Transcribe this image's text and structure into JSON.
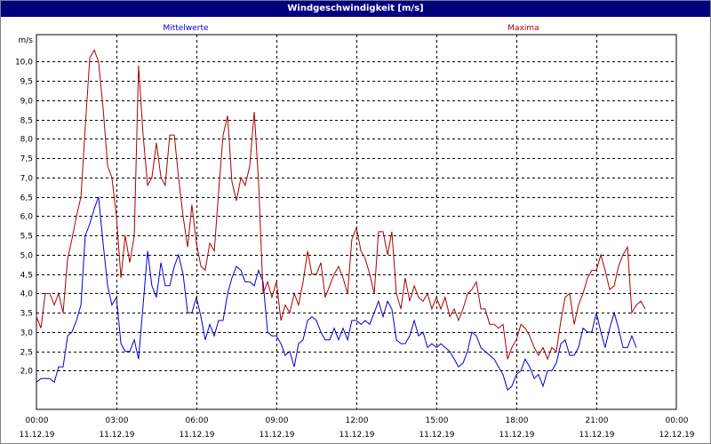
{
  "window": {
    "title": "Windgeschwindigkeit [m/s]"
  },
  "chart_data": {
    "type": "line",
    "title": "Windgeschwindigkeit [m/s]",
    "ylabel": "m/s",
    "ylim": [
      1.0,
      10.7
    ],
    "yticks": [
      "2,0",
      "2,5",
      "3,0",
      "3,5",
      "4,0",
      "4,5",
      "5,0",
      "5,5",
      "6,0",
      "6,5",
      "7,0",
      "7,5",
      "8,0",
      "8,5",
      "9,0",
      "9,5",
      "10,0"
    ],
    "xlim": [
      0,
      24
    ],
    "xticks": [
      {
        "time": "00:00",
        "date": "11.12.19"
      },
      {
        "time": "03:00",
        "date": "11.12.19"
      },
      {
        "time": "06:00",
        "date": "11.12.19"
      },
      {
        "time": "09:00",
        "date": "11.12.19"
      },
      {
        "time": "12:00",
        "date": "11.12.19"
      },
      {
        "time": "15:00",
        "date": "11.12.19"
      },
      {
        "time": "18:00",
        "date": "11.12.19"
      },
      {
        "time": "21:00",
        "date": "11.12.19"
      },
      {
        "time": "00:00",
        "date": "12.12.19"
      }
    ],
    "grid": true,
    "colors": {
      "mittelwerte": "#0000cc",
      "maxima": "#aa0000",
      "title_bar": "#00007f"
    },
    "series": [
      {
        "name": "Mittelwerte",
        "values": [
          [
            0,
            1.7
          ],
          [
            0.17,
            1.8
          ],
          [
            0.33,
            1.8
          ],
          [
            0.5,
            1.8
          ],
          [
            0.67,
            1.7
          ],
          [
            0.83,
            2.1
          ],
          [
            1,
            2.1
          ],
          [
            1.17,
            2.9
          ],
          [
            1.33,
            3.0
          ],
          [
            1.5,
            3.3
          ],
          [
            1.67,
            3.7
          ],
          [
            1.83,
            5.5
          ],
          [
            2,
            5.8
          ],
          [
            2.17,
            6.2
          ],
          [
            2.33,
            6.5
          ],
          [
            2.5,
            5.3
          ],
          [
            2.67,
            4.2
          ],
          [
            2.83,
            3.7
          ],
          [
            3,
            3.9
          ],
          [
            3.17,
            2.7
          ],
          [
            3.33,
            2.5
          ],
          [
            3.5,
            2.5
          ],
          [
            3.67,
            2.8
          ],
          [
            3.83,
            2.3
          ],
          [
            4,
            3.7
          ],
          [
            4.17,
            5.1
          ],
          [
            4.33,
            4.2
          ],
          [
            4.5,
            3.9
          ],
          [
            4.67,
            4.8
          ],
          [
            4.83,
            4.2
          ],
          [
            5,
            4.2
          ],
          [
            5.17,
            4.7
          ],
          [
            5.33,
            5.0
          ],
          [
            5.5,
            4.5
          ],
          [
            5.67,
            3.5
          ],
          [
            5.83,
            3.5
          ],
          [
            6,
            3.9
          ],
          [
            6.17,
            3.4
          ],
          [
            6.33,
            2.8
          ],
          [
            6.5,
            3.2
          ],
          [
            6.67,
            2.9
          ],
          [
            6.83,
            3.3
          ],
          [
            7,
            3.3
          ],
          [
            7.17,
            4.0
          ],
          [
            7.33,
            4.4
          ],
          [
            7.5,
            4.7
          ],
          [
            7.67,
            4.6
          ],
          [
            7.83,
            4.3
          ],
          [
            8,
            4.3
          ],
          [
            8.17,
            4.2
          ],
          [
            8.33,
            4.6
          ],
          [
            8.5,
            4.3
          ],
          [
            8.67,
            3.0
          ],
          [
            8.83,
            2.9
          ],
          [
            9,
            2.9
          ],
          [
            9.17,
            2.7
          ],
          [
            9.33,
            2.4
          ],
          [
            9.5,
            2.5
          ],
          [
            9.67,
            2.1
          ],
          [
            9.83,
            2.7
          ],
          [
            10,
            2.8
          ],
          [
            10.17,
            3.3
          ],
          [
            10.33,
            3.4
          ],
          [
            10.5,
            3.3
          ],
          [
            10.67,
            3.0
          ],
          [
            10.83,
            2.8
          ],
          [
            11,
            2.8
          ],
          [
            11.17,
            3.1
          ],
          [
            11.33,
            2.8
          ],
          [
            11.5,
            3.1
          ],
          [
            11.67,
            2.8
          ],
          [
            11.83,
            3.3
          ],
          [
            12,
            3.3
          ],
          [
            12.17,
            3.2
          ],
          [
            12.33,
            3.3
          ],
          [
            12.5,
            3.2
          ],
          [
            12.67,
            3.5
          ],
          [
            12.83,
            3.8
          ],
          [
            13,
            3.4
          ],
          [
            13.17,
            3.8
          ],
          [
            13.33,
            3.6
          ],
          [
            13.5,
            2.8
          ],
          [
            13.67,
            2.7
          ],
          [
            13.83,
            2.7
          ],
          [
            14,
            2.9
          ],
          [
            14.17,
            3.3
          ],
          [
            14.33,
            2.9
          ],
          [
            14.5,
            3.0
          ],
          [
            14.67,
            2.6
          ],
          [
            14.83,
            2.7
          ],
          [
            15,
            2.6
          ],
          [
            15.17,
            2.7
          ],
          [
            15.33,
            2.6
          ],
          [
            15.5,
            2.5
          ],
          [
            15.67,
            2.3
          ],
          [
            15.83,
            2.1
          ],
          [
            16,
            2.2
          ],
          [
            16.17,
            2.5
          ],
          [
            16.33,
            3.0
          ],
          [
            16.5,
            2.9
          ],
          [
            16.67,
            2.6
          ],
          [
            16.83,
            2.5
          ],
          [
            17,
            2.4
          ],
          [
            17.17,
            2.3
          ],
          [
            17.33,
            2.1
          ],
          [
            17.5,
            1.9
          ],
          [
            17.67,
            1.5
          ],
          [
            17.83,
            1.6
          ],
          [
            18,
            1.9
          ],
          [
            18.17,
            2.0
          ],
          [
            18.33,
            2.3
          ],
          [
            18.5,
            2.1
          ],
          [
            18.67,
            1.8
          ],
          [
            18.83,
            1.9
          ],
          [
            19,
            1.6
          ],
          [
            19.17,
            2.0
          ],
          [
            19.33,
            2.0
          ],
          [
            19.5,
            2.2
          ],
          [
            19.67,
            2.7
          ],
          [
            19.83,
            2.8
          ],
          [
            20,
            2.4
          ],
          [
            20.17,
            2.4
          ],
          [
            20.33,
            2.6
          ],
          [
            20.5,
            3.1
          ],
          [
            20.67,
            3.0
          ],
          [
            20.83,
            3.0
          ],
          [
            21,
            3.5
          ],
          [
            21.17,
            3.0
          ],
          [
            21.33,
            2.6
          ],
          [
            21.5,
            3.1
          ],
          [
            21.67,
            3.5
          ],
          [
            21.83,
            3.1
          ],
          [
            22,
            2.6
          ],
          [
            22.17,
            2.6
          ],
          [
            22.33,
            2.9
          ],
          [
            22.5,
            2.6
          ]
        ]
      },
      {
        "name": "Maxima",
        "values": [
          [
            0,
            3.4
          ],
          [
            0.17,
            3.1
          ],
          [
            0.33,
            4.0
          ],
          [
            0.5,
            4.0
          ],
          [
            0.67,
            3.7
          ],
          [
            0.83,
            4.0
          ],
          [
            1,
            3.5
          ],
          [
            1.17,
            4.9
          ],
          [
            1.33,
            5.4
          ],
          [
            1.5,
            6.0
          ],
          [
            1.67,
            6.5
          ],
          [
            1.83,
            8.3
          ],
          [
            2,
            10.1
          ],
          [
            2.17,
            10.3
          ],
          [
            2.33,
            10.0
          ],
          [
            2.5,
            8.8
          ],
          [
            2.67,
            7.3
          ],
          [
            2.83,
            7.0
          ],
          [
            3,
            6.0
          ],
          [
            3.17,
            4.4
          ],
          [
            3.33,
            5.5
          ],
          [
            3.5,
            4.8
          ],
          [
            3.67,
            5.5
          ],
          [
            3.83,
            9.9
          ],
          [
            4,
            8.1
          ],
          [
            4.17,
            6.8
          ],
          [
            4.33,
            7.0
          ],
          [
            4.5,
            7.9
          ],
          [
            4.67,
            7.0
          ],
          [
            4.83,
            6.8
          ],
          [
            5,
            8.1
          ],
          [
            5.17,
            8.1
          ],
          [
            5.33,
            7.0
          ],
          [
            5.5,
            6.0
          ],
          [
            5.67,
            5.2
          ],
          [
            5.83,
            6.3
          ],
          [
            6,
            5.3
          ],
          [
            6.17,
            4.7
          ],
          [
            6.33,
            4.6
          ],
          [
            6.5,
            5.3
          ],
          [
            6.67,
            5.1
          ],
          [
            6.83,
            6.6
          ],
          [
            7,
            8.1
          ],
          [
            7.17,
            8.6
          ],
          [
            7.33,
            6.9
          ],
          [
            7.5,
            6.4
          ],
          [
            7.67,
            7.0
          ],
          [
            7.83,
            6.8
          ],
          [
            8,
            7.3
          ],
          [
            8.17,
            8.7
          ],
          [
            8.33,
            6.9
          ],
          [
            8.5,
            4.0
          ],
          [
            8.67,
            4.3
          ],
          [
            8.83,
            3.9
          ],
          [
            9,
            4.3
          ],
          [
            9.17,
            3.3
          ],
          [
            9.33,
            3.7
          ],
          [
            9.5,
            3.5
          ],
          [
            9.67,
            4.0
          ],
          [
            9.83,
            3.7
          ],
          [
            10,
            4.3
          ],
          [
            10.17,
            5.1
          ],
          [
            10.33,
            4.5
          ],
          [
            10.5,
            4.5
          ],
          [
            10.67,
            4.8
          ],
          [
            10.83,
            3.9
          ],
          [
            11,
            4.2
          ],
          [
            11.17,
            4.5
          ],
          [
            11.33,
            4.7
          ],
          [
            11.5,
            4.4
          ],
          [
            11.67,
            4.0
          ],
          [
            11.83,
            5.4
          ],
          [
            12,
            5.7
          ],
          [
            12.17,
            5.1
          ],
          [
            12.33,
            4.9
          ],
          [
            12.5,
            4.5
          ],
          [
            12.67,
            4.0
          ],
          [
            12.83,
            5.6
          ],
          [
            13,
            5.6
          ],
          [
            13.17,
            5.0
          ],
          [
            13.33,
            5.6
          ],
          [
            13.5,
            4.0
          ],
          [
            13.67,
            3.6
          ],
          [
            13.83,
            4.4
          ],
          [
            14,
            3.8
          ],
          [
            14.17,
            4.2
          ],
          [
            14.33,
            3.9
          ],
          [
            14.5,
            3.8
          ],
          [
            14.67,
            4.0
          ],
          [
            14.83,
            3.6
          ],
          [
            15,
            3.9
          ],
          [
            15.17,
            3.6
          ],
          [
            15.33,
            3.9
          ],
          [
            15.5,
            3.4
          ],
          [
            15.67,
            3.6
          ],
          [
            15.83,
            3.3
          ],
          [
            16,
            3.6
          ],
          [
            16.17,
            4.0
          ],
          [
            16.33,
            4.1
          ],
          [
            16.5,
            4.3
          ],
          [
            16.67,
            3.6
          ],
          [
            16.83,
            3.6
          ],
          [
            17,
            3.2
          ],
          [
            17.17,
            3.2
          ],
          [
            17.33,
            3.1
          ],
          [
            17.5,
            3.2
          ],
          [
            17.67,
            2.3
          ],
          [
            17.83,
            2.6
          ],
          [
            18,
            2.8
          ],
          [
            18.17,
            3.2
          ],
          [
            18.33,
            3.1
          ],
          [
            18.5,
            2.9
          ],
          [
            18.67,
            2.6
          ],
          [
            18.83,
            2.4
          ],
          [
            19,
            2.6
          ],
          [
            19.17,
            2.3
          ],
          [
            19.33,
            2.6
          ],
          [
            19.5,
            2.5
          ],
          [
            19.67,
            3.3
          ],
          [
            19.83,
            3.9
          ],
          [
            20,
            4.0
          ],
          [
            20.17,
            3.2
          ],
          [
            20.33,
            3.7
          ],
          [
            20.5,
            4.0
          ],
          [
            20.67,
            4.4
          ],
          [
            20.83,
            4.6
          ],
          [
            21,
            4.6
          ],
          [
            21.17,
            5.0
          ],
          [
            21.33,
            4.6
          ],
          [
            21.5,
            4.1
          ],
          [
            21.67,
            4.2
          ],
          [
            21.83,
            4.7
          ],
          [
            22,
            5.0
          ],
          [
            22.17,
            5.2
          ],
          [
            22.33,
            3.5
          ],
          [
            22.5,
            3.7
          ],
          [
            22.67,
            3.8
          ],
          [
            22.83,
            3.6
          ]
        ]
      }
    ]
  }
}
